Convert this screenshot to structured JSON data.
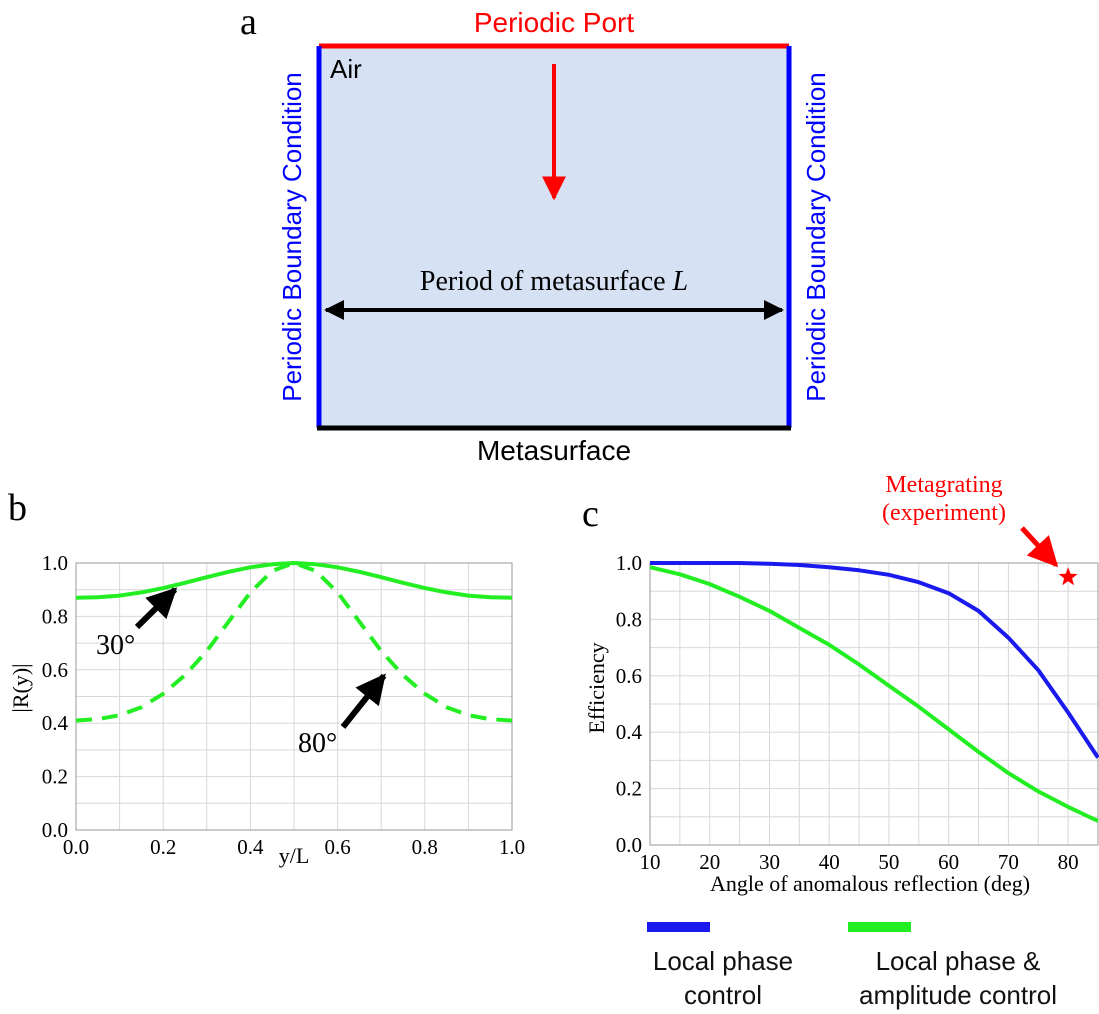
{
  "panel_a": {
    "label": "a",
    "top_label": "Periodic Port",
    "left_label": "Periodic Boundary Condition",
    "right_label": "Periodic Boundary Condition",
    "medium_label": "Air",
    "period_label": "Period of metasurface",
    "period_symbol": "L",
    "bottom_label": "Metasurface",
    "colors": {
      "fill": "#d6e1f3",
      "port": "#ff0000",
      "boundary": "#0000ff",
      "surface": "#000000",
      "arrow": "#ff0000"
    }
  },
  "chart_data": [
    {
      "panel_label": "b",
      "type": "line",
      "xlabel": "y/L",
      "ylabel": "|R(y)|",
      "xlim": [
        0,
        1
      ],
      "ylim": [
        0,
        1
      ],
      "xticks": [
        "0.0",
        "0.2",
        "0.4",
        "0.6",
        "0.8",
        "1.0"
      ],
      "yticks": [
        "0.0",
        "0.2",
        "0.4",
        "0.6",
        "0.8",
        "1.0"
      ],
      "grid": true,
      "series": [
        {
          "color": "#22ee22",
          "style": "solid",
          "x": [
            0,
            0.05,
            0.1,
            0.15,
            0.2,
            0.25,
            0.3,
            0.35,
            0.4,
            0.45,
            0.5,
            0.55,
            0.6,
            0.65,
            0.7,
            0.75,
            0.8,
            0.85,
            0.9,
            0.95,
            1.0
          ],
          "y": [
            0.87,
            0.872,
            0.878,
            0.89,
            0.906,
            0.926,
            0.947,
            0.967,
            0.984,
            0.995,
            1.0,
            0.995,
            0.984,
            0.967,
            0.947,
            0.926,
            0.906,
            0.89,
            0.878,
            0.872,
            0.87
          ]
        },
        {
          "color": "#22ee22",
          "style": "dashed",
          "x": [
            0,
            0.05,
            0.1,
            0.15,
            0.2,
            0.25,
            0.3,
            0.35,
            0.4,
            0.45,
            0.5,
            0.55,
            0.6,
            0.65,
            0.7,
            0.75,
            0.8,
            0.85,
            0.9,
            0.95,
            1.0
          ],
          "y": [
            0.41,
            0.415,
            0.43,
            0.46,
            0.51,
            0.58,
            0.67,
            0.78,
            0.89,
            0.97,
            1.0,
            0.97,
            0.89,
            0.78,
            0.67,
            0.58,
            0.51,
            0.46,
            0.43,
            0.415,
            0.41
          ]
        }
      ],
      "annotations": [
        {
          "text": "30°",
          "x": 0.25,
          "y": 0.927
        },
        {
          "text": "80°",
          "x": 0.72,
          "y": 0.6
        }
      ]
    },
    {
      "panel_label": "c",
      "type": "line",
      "xlabel": "Angle of anomalous reflection (deg)",
      "ylabel": "Efficiency",
      "xlim": [
        10,
        85
      ],
      "ylim": [
        0,
        1
      ],
      "xticks": [
        "10",
        "20",
        "30",
        "40",
        "50",
        "60",
        "70",
        "80"
      ],
      "yticks": [
        "0.0",
        "0.2",
        "0.4",
        "0.6",
        "0.8",
        "1.0"
      ],
      "grid": true,
      "series": [
        {
          "name": "Local phase control",
          "color": "#1a1aee",
          "x": [
            10,
            15,
            20,
            25,
            30,
            35,
            40,
            45,
            50,
            55,
            60,
            65,
            70,
            75,
            80,
            85
          ],
          "y": [
            1.0,
            1.0,
            1.0,
            1.0,
            0.997,
            0.993,
            0.985,
            0.974,
            0.958,
            0.932,
            0.893,
            0.83,
            0.735,
            0.62,
            0.47,
            0.31
          ]
        },
        {
          "name": "Local phase & amplitude control",
          "color": "#22ee22",
          "x": [
            10,
            15,
            20,
            25,
            30,
            35,
            40,
            45,
            50,
            55,
            60,
            65,
            70,
            75,
            80,
            85
          ],
          "y": [
            0.985,
            0.96,
            0.925,
            0.88,
            0.83,
            0.77,
            0.71,
            0.64,
            0.565,
            0.49,
            0.41,
            0.33,
            0.255,
            0.19,
            0.135,
            0.085
          ]
        }
      ],
      "marker": {
        "label": "Metagrating\n(experiment)",
        "x": 80,
        "y": 0.95,
        "color": "#ff0000"
      }
    }
  ],
  "legend": {
    "items": [
      {
        "label": "Local phase\ncontrol",
        "color": "#1a1aee"
      },
      {
        "label": "Local phase &\namplitude control",
        "color": "#22ee22"
      }
    ]
  }
}
